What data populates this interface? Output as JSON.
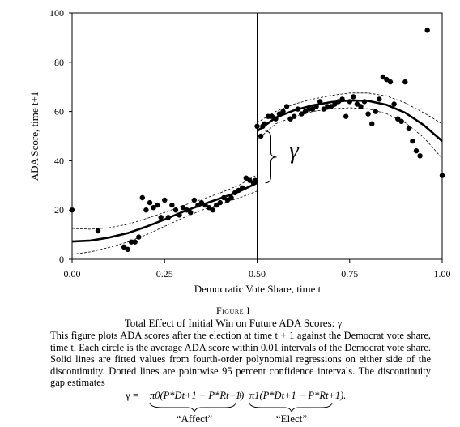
{
  "chart_data": {
    "type": "scatter",
    "title": "",
    "xlabel": "Democratic Vote Share, time t",
    "ylabel": "ADA Score, time t+1",
    "xlim": [
      0,
      1
    ],
    "ylim": [
      0,
      100
    ],
    "xticks": [
      "0.00",
      "0.25",
      "0.50",
      "0.75",
      "1.00"
    ],
    "yticks": [
      "0",
      "20",
      "40",
      "60",
      "80",
      "100"
    ],
    "discontinuity_x": 0.5,
    "gap_label": "γ",
    "points": [
      [
        0.0,
        20
      ],
      [
        0.07,
        11.5
      ],
      [
        0.14,
        5
      ],
      [
        0.15,
        4
      ],
      [
        0.16,
        7
      ],
      [
        0.17,
        7
      ],
      [
        0.18,
        9
      ],
      [
        0.19,
        25
      ],
      [
        0.2,
        20
      ],
      [
        0.21,
        23
      ],
      [
        0.22,
        21
      ],
      [
        0.23,
        22
      ],
      [
        0.24,
        17
      ],
      [
        0.25,
        24
      ],
      [
        0.26,
        17
      ],
      [
        0.27,
        22
      ],
      [
        0.28,
        20
      ],
      [
        0.29,
        18
      ],
      [
        0.3,
        21
      ],
      [
        0.31,
        20
      ],
      [
        0.32,
        19
      ],
      [
        0.33,
        24
      ],
      [
        0.34,
        22
      ],
      [
        0.35,
        23
      ],
      [
        0.36,
        22
      ],
      [
        0.37,
        21
      ],
      [
        0.38,
        20
      ],
      [
        0.39,
        22
      ],
      [
        0.4,
        23
      ],
      [
        0.41,
        25
      ],
      [
        0.42,
        24
      ],
      [
        0.43,
        25
      ],
      [
        0.44,
        27
      ],
      [
        0.45,
        28
      ],
      [
        0.46,
        29
      ],
      [
        0.47,
        33
      ],
      [
        0.48,
        32
      ],
      [
        0.49,
        31
      ],
      [
        0.495,
        32
      ],
      [
        0.5,
        54
      ],
      [
        0.51,
        50
      ],
      [
        0.515,
        54
      ],
      [
        0.52,
        55
      ],
      [
        0.53,
        58
      ],
      [
        0.54,
        58
      ],
      [
        0.55,
        57
      ],
      [
        0.56,
        59
      ],
      [
        0.57,
        60
      ],
      [
        0.58,
        62
      ],
      [
        0.59,
        57
      ],
      [
        0.6,
        58
      ],
      [
        0.61,
        61
      ],
      [
        0.62,
        59
      ],
      [
        0.63,
        60
      ],
      [
        0.64,
        61
      ],
      [
        0.65,
        61
      ],
      [
        0.66,
        62
      ],
      [
        0.67,
        64
      ],
      [
        0.68,
        61
      ],
      [
        0.69,
        62
      ],
      [
        0.7,
        62
      ],
      [
        0.71,
        63
      ],
      [
        0.72,
        64
      ],
      [
        0.73,
        65
      ],
      [
        0.74,
        58
      ],
      [
        0.75,
        64
      ],
      [
        0.76,
        66
      ],
      [
        0.77,
        63
      ],
      [
        0.78,
        62
      ],
      [
        0.79,
        64
      ],
      [
        0.8,
        59
      ],
      [
        0.81,
        55
      ],
      [
        0.82,
        60
      ],
      [
        0.83,
        65
      ],
      [
        0.84,
        74
      ],
      [
        0.85,
        73
      ],
      [
        0.86,
        72
      ],
      [
        0.87,
        63
      ],
      [
        0.88,
        57
      ],
      [
        0.89,
        56
      ],
      [
        0.9,
        72
      ],
      [
        0.91,
        53
      ],
      [
        0.92,
        48
      ],
      [
        0.93,
        44
      ],
      [
        0.94,
        42
      ],
      [
        0.96,
        93
      ],
      [
        1.0,
        34
      ]
    ],
    "fit_left": [
      [
        0.0,
        7.2
      ],
      [
        0.05,
        7.6
      ],
      [
        0.1,
        8.8
      ],
      [
        0.15,
        10.6
      ],
      [
        0.2,
        13.2
      ],
      [
        0.25,
        16.2
      ],
      [
        0.3,
        19.3
      ],
      [
        0.35,
        22.1
      ],
      [
        0.4,
        24.7
      ],
      [
        0.45,
        27.4
      ],
      [
        0.5,
        31.0
      ]
    ],
    "upper_left": [
      [
        0.0,
        12.5
      ],
      [
        0.05,
        12.2
      ],
      [
        0.1,
        12.8
      ],
      [
        0.15,
        14.2
      ],
      [
        0.2,
        16.5
      ],
      [
        0.25,
        19.0
      ],
      [
        0.3,
        21.8
      ],
      [
        0.35,
        24.3
      ],
      [
        0.4,
        26.9
      ],
      [
        0.45,
        30.0
      ],
      [
        0.5,
        34.3
      ]
    ],
    "lower_left": [
      [
        0.0,
        2.0
      ],
      [
        0.05,
        3.0
      ],
      [
        0.1,
        4.8
      ],
      [
        0.15,
        7.0
      ],
      [
        0.2,
        9.9
      ],
      [
        0.25,
        13.4
      ],
      [
        0.3,
        16.8
      ],
      [
        0.35,
        19.9
      ],
      [
        0.4,
        22.5
      ],
      [
        0.45,
        24.8
      ],
      [
        0.5,
        27.7
      ]
    ],
    "fit_right": [
      [
        0.5,
        52
      ],
      [
        0.55,
        57.5
      ],
      [
        0.6,
        60.5
      ],
      [
        0.65,
        62.5
      ],
      [
        0.7,
        63.8
      ],
      [
        0.75,
        64.5
      ],
      [
        0.8,
        64.3
      ],
      [
        0.85,
        62.7
      ],
      [
        0.9,
        59.5
      ],
      [
        0.95,
        54.5
      ],
      [
        1.0,
        48
      ]
    ],
    "upper_right": [
      [
        0.5,
        55.5
      ],
      [
        0.55,
        60.0
      ],
      [
        0.6,
        63.0
      ],
      [
        0.65,
        65.0
      ],
      [
        0.7,
        66.5
      ],
      [
        0.75,
        67.5
      ],
      [
        0.8,
        67.5
      ],
      [
        0.85,
        66.3
      ],
      [
        0.9,
        63.5
      ],
      [
        0.95,
        59.5
      ],
      [
        1.0,
        55
      ]
    ],
    "lower_right": [
      [
        0.5,
        48.5
      ],
      [
        0.55,
        55.0
      ],
      [
        0.6,
        58.0
      ],
      [
        0.65,
        60.0
      ],
      [
        0.7,
        61.1
      ],
      [
        0.75,
        61.5
      ],
      [
        0.8,
        61.1
      ],
      [
        0.85,
        59.1
      ],
      [
        0.9,
        55.5
      ],
      [
        0.95,
        49.5
      ],
      [
        1.0,
        41
      ]
    ]
  },
  "caption": {
    "figure_label": "Figure I",
    "title": "Total Effect of Initial Win on Future ADA Scores: γ",
    "text": "This figure plots ADA scores after the election at time t + 1 against the Democrat vote share, time t. Each circle is the average ADA score within 0.01 intervals of the Democrat vote share. Solid lines are fitted values from fourth-order polynomial regressions on either side of the discontinuity. Dotted lines are pointwise 95 percent confidence intervals. The discontinuity gap estimates",
    "formula_lhs": "γ = ",
    "formula_term1": "π0(P*Dt+1 − P*Rt+1)",
    "formula_plus": " + ",
    "formula_term2": "π1(P*Dt+1 − P*Rt+1).",
    "label_affect": "“Affect”",
    "label_elect": "“Elect”"
  }
}
